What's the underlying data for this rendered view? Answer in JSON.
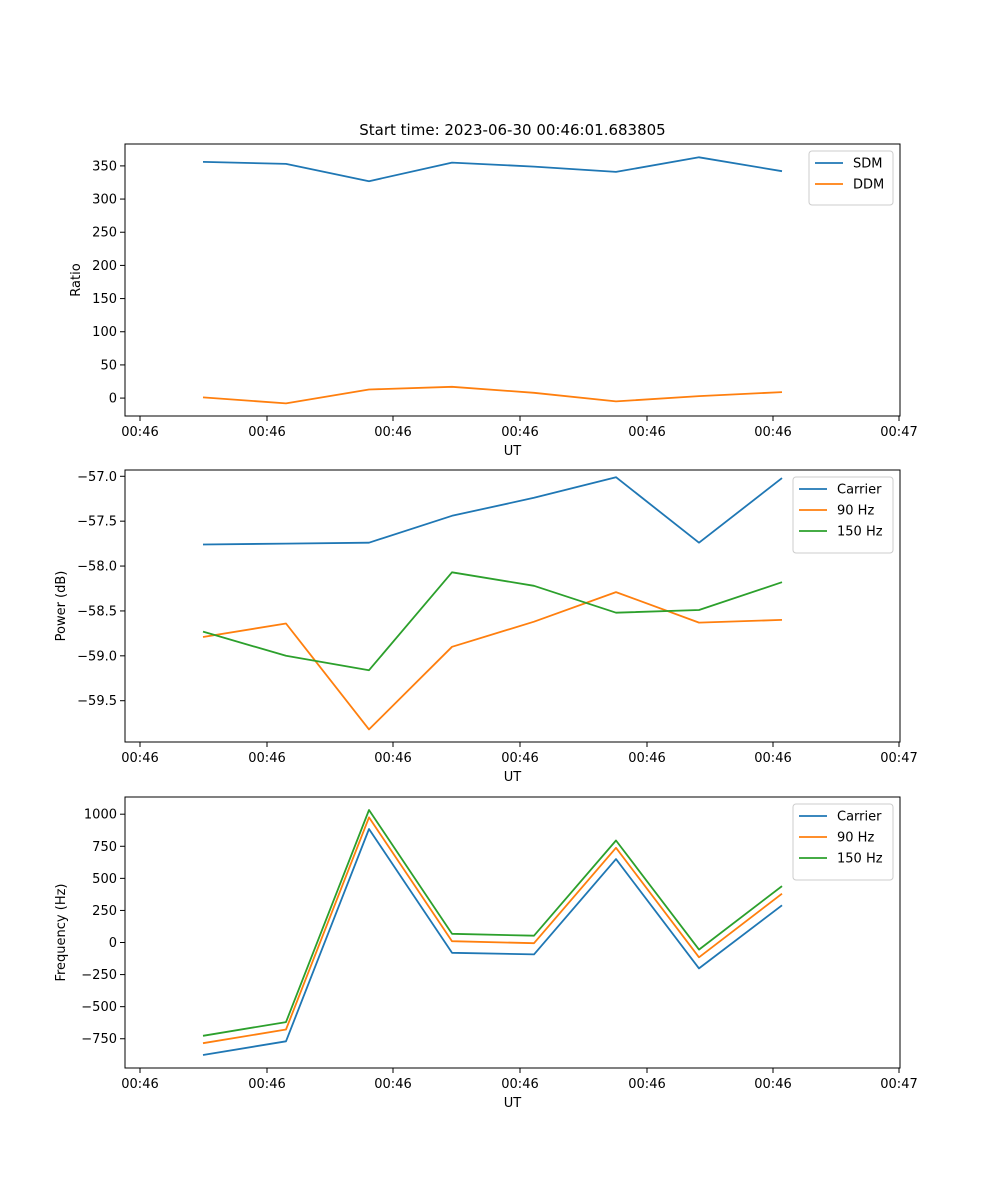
{
  "figure": {
    "title": "Start time: 2023-06-30 00:46:01.683805"
  },
  "chart_data": [
    {
      "type": "line",
      "title": "Start time: 2023-06-30 00:46:01.683805",
      "xlabel": "UT",
      "ylabel": "Ratio",
      "x_tick_labels": [
        "00:46",
        "00:46",
        "00:46",
        "00:46",
        "00:46",
        "00:46",
        "00:47"
      ],
      "y_ticks": [
        0,
        50,
        100,
        150,
        200,
        250,
        300,
        350
      ],
      "ylim": [
        -27,
        383
      ],
      "legend_position": "upper right",
      "grid": false,
      "series": [
        {
          "name": "SDM",
          "color": "#1f77b4",
          "values": [
            356,
            353,
            327,
            355,
            349,
            341,
            363,
            342
          ]
        },
        {
          "name": "DDM",
          "color": "#ff7f0e",
          "values": [
            1,
            -8,
            13,
            17,
            8,
            -5,
            3,
            9
          ]
        }
      ]
    },
    {
      "type": "line",
      "xlabel": "UT",
      "ylabel": "Power (dB)",
      "x_tick_labels": [
        "00:46",
        "00:46",
        "00:46",
        "00:46",
        "00:46",
        "00:46",
        "00:47"
      ],
      "y_ticks": [
        -59.5,
        -59.0,
        -58.5,
        -58.0,
        -57.5,
        -57.0
      ],
      "y_tick_labels": [
        "−59.5",
        "−59.0",
        "−58.5",
        "−58.0",
        "−57.5",
        "−57.0"
      ],
      "ylim": [
        -59.96,
        -56.93
      ],
      "legend_position": "upper right",
      "grid": false,
      "series": [
        {
          "name": "Carrier",
          "color": "#1f77b4",
          "values": [
            -57.76,
            -57.75,
            -57.74,
            -57.44,
            -57.24,
            -57.01,
            -57.74,
            -57.02
          ]
        },
        {
          "name": "90 Hz",
          "color": "#ff7f0e",
          "values": [
            -58.79,
            -58.64,
            -59.82,
            -58.9,
            -58.62,
            -58.29,
            -58.63,
            -58.6
          ]
        },
        {
          "name": "150 Hz",
          "color": "#2ca02c",
          "values": [
            -58.73,
            -59.0,
            -59.16,
            -58.07,
            -58.22,
            -58.52,
            -58.49,
            -58.18
          ]
        }
      ]
    },
    {
      "type": "line",
      "xlabel": "UT",
      "ylabel": "Frequency (Hz)",
      "x_tick_labels": [
        "00:46",
        "00:46",
        "00:46",
        "00:46",
        "00:46",
        "00:46",
        "00:47"
      ],
      "y_ticks": [
        -750,
        -500,
        -250,
        0,
        250,
        500,
        750,
        1000
      ],
      "y_tick_labels": [
        "−750",
        "−500",
        "−250",
        "0",
        "250",
        "500",
        "750",
        "1000"
      ],
      "ylim": [
        -978,
        1134
      ],
      "legend_position": "upper right",
      "grid": false,
      "series": [
        {
          "name": "Carrier",
          "color": "#1f77b4",
          "values": [
            -877,
            -770,
            885,
            -80,
            -93,
            650,
            -202,
            290
          ]
        },
        {
          "name": "90 Hz",
          "color": "#ff7f0e",
          "values": [
            -785,
            -678,
            975,
            10,
            -5,
            738,
            -115,
            380
          ]
        },
        {
          "name": "150 Hz",
          "color": "#2ca02c",
          "values": [
            -727,
            -620,
            1033,
            68,
            53,
            795,
            -55,
            440
          ]
        }
      ]
    }
  ]
}
